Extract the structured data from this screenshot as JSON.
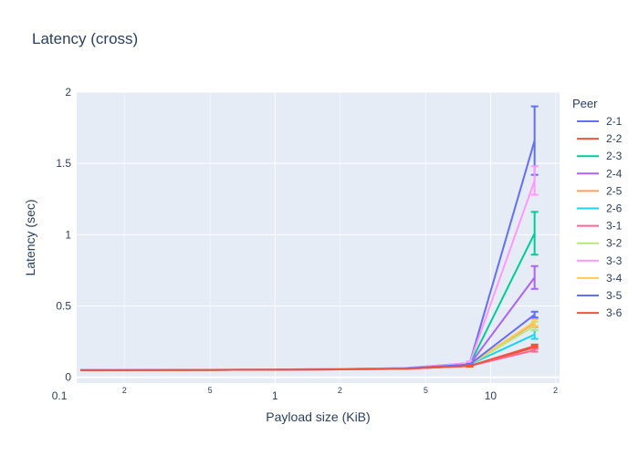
{
  "chart_data": {
    "type": "line",
    "title": "Latency (cross)",
    "xlabel": "Payload size (KiB)",
    "ylabel": "Latency (sec)",
    "xscale": "log",
    "xlim_log10": [
      -0.92,
      1.32
    ],
    "ylim": [
      -0.04,
      2.0
    ],
    "grid": true,
    "plot_bg": "#e5ecf6",
    "legend": {
      "title": "Peer",
      "placement": "right"
    },
    "x_major_ticks": [
      {
        "value": 0.1,
        "label": "0.1"
      },
      {
        "value": 1,
        "label": "1"
      },
      {
        "value": 10,
        "label": "10"
      }
    ],
    "x_minor_ticks": [
      {
        "value": 0.2,
        "label": "2"
      },
      {
        "value": 0.5,
        "label": "5"
      },
      {
        "value": 2,
        "label": "2"
      },
      {
        "value": 5,
        "label": "5"
      },
      {
        "value": 20,
        "label": "2"
      }
    ],
    "y_ticks": [
      {
        "value": 0,
        "label": "0"
      },
      {
        "value": 0.5,
        "label": "0.5"
      },
      {
        "value": 1,
        "label": "1"
      },
      {
        "value": 1.5,
        "label": "1.5"
      },
      {
        "value": 2,
        "label": "2"
      }
    ],
    "x": [
      0.125,
      0.25,
      0.5,
      1,
      2,
      4,
      8,
      16
    ],
    "series": [
      {
        "name": "2-1",
        "color": "#636efa",
        "values": [
          0.051,
          0.052,
          0.053,
          0.055,
          0.058,
          0.065,
          0.1,
          1.66
        ],
        "error": [
          0,
          0,
          0,
          0,
          0,
          0,
          0.01,
          0.24
        ]
      },
      {
        "name": "2-2",
        "color": "#ef553b",
        "values": [
          0.05,
          0.051,
          0.052,
          0.053,
          0.056,
          0.06,
          0.08,
          0.21
        ],
        "error": [
          0,
          0,
          0,
          0,
          0,
          0,
          0.005,
          0.01
        ]
      },
      {
        "name": "2-3",
        "color": "#00cc96",
        "values": [
          0.05,
          0.051,
          0.052,
          0.054,
          0.057,
          0.062,
          0.09,
          1.01
        ],
        "error": [
          0,
          0,
          0,
          0,
          0,
          0,
          0.005,
          0.15
        ]
      },
      {
        "name": "2-4",
        "color": "#ab63fa",
        "values": [
          0.05,
          0.051,
          0.052,
          0.054,
          0.057,
          0.062,
          0.09,
          0.7
        ],
        "error": [
          0,
          0,
          0,
          0,
          0,
          0,
          0.005,
          0.08
        ]
      },
      {
        "name": "2-5",
        "color": "#ffa15a",
        "values": [
          0.05,
          0.051,
          0.052,
          0.054,
          0.057,
          0.062,
          0.09,
          0.38
        ],
        "error": [
          0,
          0,
          0,
          0,
          0,
          0,
          0.005,
          0.03
        ]
      },
      {
        "name": "2-6",
        "color": "#19d3f3",
        "values": [
          0.05,
          0.051,
          0.052,
          0.054,
          0.057,
          0.062,
          0.09,
          0.3
        ],
        "error": [
          0,
          0,
          0,
          0,
          0,
          0,
          0.005,
          0.03
        ]
      },
      {
        "name": "3-1",
        "color": "#ff6692",
        "values": [
          0.05,
          0.051,
          0.052,
          0.053,
          0.056,
          0.06,
          0.08,
          0.19
        ],
        "error": [
          0,
          0,
          0,
          0,
          0,
          0,
          0.005,
          0.01
        ]
      },
      {
        "name": "3-2",
        "color": "#b6e880",
        "values": [
          0.05,
          0.051,
          0.052,
          0.054,
          0.057,
          0.062,
          0.09,
          0.36
        ],
        "error": [
          0,
          0,
          0,
          0,
          0,
          0,
          0.005,
          0.03
        ]
      },
      {
        "name": "3-3",
        "color": "#ff97ff",
        "values": [
          0.051,
          0.052,
          0.053,
          0.055,
          0.058,
          0.064,
          0.1,
          1.38
        ],
        "error": [
          0,
          0,
          0,
          0,
          0,
          0,
          0.01,
          0.1
        ]
      },
      {
        "name": "3-4",
        "color": "#fecb52",
        "values": [
          0.05,
          0.051,
          0.052,
          0.054,
          0.057,
          0.062,
          0.09,
          0.39
        ],
        "error": [
          0,
          0,
          0,
          0,
          0,
          0,
          0.005,
          0.03
        ]
      },
      {
        "name": "3-5",
        "color": "#636efa",
        "values": [
          0.05,
          0.051,
          0.052,
          0.054,
          0.057,
          0.062,
          0.09,
          0.44
        ],
        "error": [
          0,
          0,
          0,
          0,
          0,
          0,
          0.005,
          0.02
        ]
      },
      {
        "name": "3-6",
        "color": "#ef553b",
        "values": [
          0.05,
          0.051,
          0.052,
          0.053,
          0.056,
          0.06,
          0.08,
          0.22
        ],
        "error": [
          0,
          0,
          0,
          0,
          0,
          0,
          0.005,
          0.01
        ]
      }
    ]
  }
}
